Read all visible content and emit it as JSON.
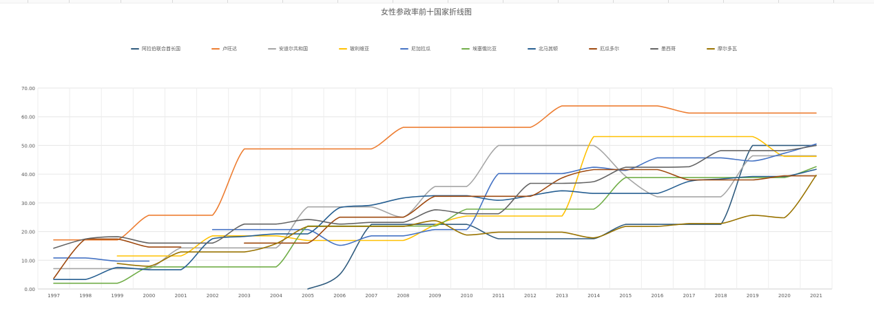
{
  "chart_data": {
    "type": "line",
    "title": "女性参政率前十国家折线图",
    "xlabel": "",
    "ylabel": "",
    "categories": [
      "1997",
      "1998",
      "1999",
      "2000",
      "2001",
      "2002",
      "2003",
      "2004",
      "2005",
      "2006",
      "2007",
      "2008",
      "2009",
      "2010",
      "2011",
      "2012",
      "2013",
      "2014",
      "2015",
      "2016",
      "2017",
      "2018",
      "2019",
      "2020",
      "2021"
    ],
    "ylim": [
      0,
      70
    ],
    "yticks": [
      "0.00",
      "10.00",
      "20.00",
      "30.00",
      "40.00",
      "50.00",
      "60.00",
      "70.00"
    ],
    "grid": true,
    "legend_position": "top",
    "series": [
      {
        "name": "阿拉伯联合酋长国",
        "color": "#2e5a7d",
        "values": [
          null,
          null,
          null,
          null,
          null,
          null,
          null,
          null,
          0,
          5,
          22.5,
          22.5,
          22.5,
          22.5,
          17.5,
          17.5,
          17.5,
          17.5,
          22.5,
          22.5,
          22.5,
          22.5,
          50,
          50,
          50
        ]
      },
      {
        "name": "卢旺达",
        "color": "#ed7d31",
        "values": [
          17.1,
          17.1,
          17.1,
          25.7,
          25.7,
          25.7,
          48.8,
          48.8,
          48.8,
          48.8,
          48.8,
          56.3,
          56.3,
          56.3,
          56.3,
          56.3,
          63.8,
          63.8,
          63.8,
          63.8,
          61.3,
          61.3,
          61.3,
          61.3,
          61.3
        ]
      },
      {
        "name": "安道尔共和国",
        "color": "#a5a5a5",
        "values": [
          7.1,
          7.1,
          7.1,
          7.1,
          14.3,
          14.3,
          14.3,
          14.3,
          28.6,
          28.6,
          28.6,
          25,
          35.7,
          35.7,
          50,
          50,
          50,
          50,
          39.3,
          32.1,
          32.1,
          32.1,
          46.4,
          46.4,
          46.4
        ]
      },
      {
        "name": "玻利维亚",
        "color": "#ffc000",
        "values": [
          null,
          null,
          11.5,
          11.5,
          11.5,
          18.5,
          18.5,
          18.5,
          16.9,
          16.9,
          16.9,
          16.9,
          22.3,
          25.4,
          25.4,
          25.4,
          25.4,
          53.1,
          53.1,
          53.1,
          53.1,
          53.1,
          53.1,
          46.2,
          46.2
        ]
      },
      {
        "name": "尼加拉瓜",
        "color": "#4472c4",
        "values": [
          10.8,
          10.8,
          9.7,
          9.7,
          null,
          20.7,
          20.7,
          20.7,
          20.7,
          15.2,
          18.5,
          18.5,
          20.7,
          20.7,
          40.2,
          40.2,
          40.2,
          42.4,
          41.3,
          45.7,
          45.7,
          45.7,
          44.6,
          47.3,
          50.5
        ]
      },
      {
        "name": "埃塞俄比亚",
        "color": "#70ad47",
        "values": [
          2,
          2,
          2,
          7.7,
          7.7,
          7.7,
          7.7,
          7.7,
          21.9,
          21.9,
          21.9,
          21.9,
          21.9,
          27.8,
          27.8,
          27.8,
          27.8,
          27.8,
          38.8,
          38.8,
          38.8,
          38.8,
          38.8,
          38.8,
          42.6
        ]
      },
      {
        "name": "北马其顿",
        "color": "#255e91",
        "values": [
          3.3,
          3.3,
          7.5,
          6.7,
          6.7,
          17.5,
          18.3,
          19.2,
          19.2,
          28.3,
          29.2,
          31.7,
          32.5,
          32.5,
          30.9,
          32.5,
          34.2,
          33.3,
          33.3,
          33.3,
          37.5,
          38.3,
          39.2,
          39.2,
          41.7
        ]
      },
      {
        "name": "厄瓜多尔",
        "color": "#9e480e",
        "values": [
          3.7,
          17.4,
          17.4,
          14.6,
          14.6,
          null,
          16,
          16,
          16,
          25,
          25,
          25,
          32.3,
          32.3,
          32.3,
          32.3,
          38.7,
          41.6,
          41.6,
          41.6,
          38,
          38,
          38,
          39.4,
          39.4
        ]
      },
      {
        "name": "墨西哥",
        "color": "#636363",
        "values": [
          14.2,
          17.4,
          18.2,
          16,
          16,
          16,
          22.6,
          22.6,
          24.2,
          22.6,
          23.2,
          23.2,
          27.6,
          26.2,
          26.2,
          36.8,
          36.8,
          37.4,
          42.4,
          42.4,
          42.6,
          48.2,
          48.2,
          48.2,
          50
        ]
      },
      {
        "name": "摩尔多瓦",
        "color": "#997300",
        "values": [
          null,
          null,
          8.9,
          7.9,
          12.9,
          12.9,
          12.9,
          15.8,
          21.8,
          21.8,
          21.8,
          21.8,
          23.8,
          18.8,
          19.8,
          19.8,
          19.8,
          17.8,
          21.8,
          21.8,
          22.8,
          22.8,
          25.7,
          24.8,
          39.6
        ]
      }
    ]
  },
  "window": {
    "faint_tab_strip": true
  }
}
